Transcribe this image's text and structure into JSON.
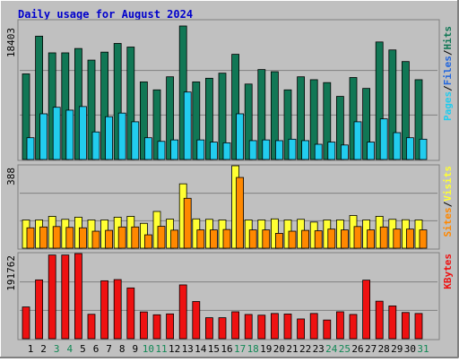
{
  "title": "Daily usage for August 2024",
  "colors": {
    "hits": "#117755",
    "files": "#22ccee",
    "sites": "#ff8800",
    "visits": "#ffff33",
    "kbytes": "#ee1111",
    "weekend_label": "#118855",
    "weekday_label": "#000000",
    "title_text": "#0000cc",
    "background": "#c0c0c0"
  },
  "chart_data": [
    {
      "type": "bar",
      "panel": "top",
      "side_label_parts": [
        "Pages",
        "Files",
        "Hits"
      ],
      "max_label": "18403",
      "ylim": [
        0,
        18403
      ],
      "categories": [
        "1",
        "2",
        "3",
        "4",
        "5",
        "6",
        "7",
        "8",
        "9",
        "10",
        "11",
        "12",
        "13",
        "14",
        "15",
        "16",
        "17",
        "18",
        "19",
        "20",
        "21",
        "22",
        "23",
        "24",
        "25",
        "26",
        "27",
        "28",
        "29",
        "30",
        "31"
      ],
      "weekend_days": [
        "3",
        "4",
        "10",
        "11",
        "17",
        "18",
        "24",
        "25",
        "31"
      ],
      "series": [
        {
          "name": "Hits",
          "values": [
            11800,
            17000,
            14700,
            14700,
            15300,
            13700,
            14800,
            16000,
            15500,
            10700,
            9600,
            11400,
            18403,
            10700,
            11200,
            11900,
            14500,
            10400,
            12400,
            12100,
            9600,
            11400,
            11000,
            10600,
            8700,
            11300,
            9800,
            16200,
            15100,
            13500,
            11000
          ]
        },
        {
          "name": "Files",
          "values": [
            3000,
            6300,
            7200,
            6800,
            7300,
            3800,
            5900,
            6400,
            5200,
            3000,
            2500,
            2700,
            9300,
            2700,
            2400,
            2300,
            6300,
            2600,
            2700,
            2600,
            2800,
            2600,
            2100,
            2400,
            2000,
            5200,
            2400,
            5600,
            3700,
            3000,
            2800
          ]
        },
        {
          "name": "Pages",
          "values": [
            0,
            0,
            0,
            0,
            0,
            0,
            0,
            0,
            0,
            0,
            0,
            0,
            0,
            0,
            0,
            0,
            0,
            0,
            0,
            0,
            0,
            0,
            0,
            0,
            0,
            0,
            0,
            0,
            0,
            0,
            0
          ]
        }
      ]
    },
    {
      "type": "bar",
      "panel": "middle",
      "side_label_parts": [
        "Sites",
        "Visits"
      ],
      "max_label": "388",
      "ylim": [
        0,
        388
      ],
      "categories": [
        "1",
        "2",
        "3",
        "4",
        "5",
        "6",
        "7",
        "8",
        "9",
        "10",
        "11",
        "12",
        "13",
        "14",
        "15",
        "16",
        "17",
        "18",
        "19",
        "20",
        "21",
        "22",
        "23",
        "24",
        "25",
        "26",
        "27",
        "28",
        "29",
        "30",
        "31"
      ],
      "series": [
        {
          "name": "Visits",
          "values": [
            133,
            133,
            150,
            136,
            146,
            133,
            133,
            146,
            150,
            117,
            173,
            137,
            303,
            138,
            136,
            133,
            388,
            133,
            133,
            138,
            133,
            136,
            123,
            133,
            133,
            154,
            133,
            150,
            136,
            134,
            133
          ]
        },
        {
          "name": "Sites",
          "values": [
            96,
            100,
            102,
            98,
            96,
            80,
            84,
            100,
            100,
            63,
            103,
            85,
            235,
            86,
            86,
            88,
            333,
            86,
            86,
            70,
            80,
            84,
            82,
            90,
            86,
            102,
            86,
            100,
            90,
            90,
            86
          ]
        }
      ]
    },
    {
      "type": "bar",
      "panel": "bottom",
      "side_label_parts": [
        "KBytes"
      ],
      "max_label": "191762",
      "ylim": [
        0,
        191762
      ],
      "categories": [
        "1",
        "2",
        "3",
        "4",
        "5",
        "6",
        "7",
        "8",
        "9",
        "10",
        "11",
        "12",
        "13",
        "14",
        "15",
        "16",
        "17",
        "18",
        "19",
        "20",
        "21",
        "22",
        "23",
        "24",
        "25",
        "26",
        "27",
        "28",
        "29",
        "30",
        "31"
      ],
      "series": [
        {
          "name": "KBytes",
          "values": [
            71500,
            132500,
            188500,
            188500,
            191762,
            55000,
            130500,
            133200,
            114400,
            60300,
            53900,
            55900,
            121200,
            83800,
            47300,
            47300,
            60600,
            54600,
            53000,
            56800,
            55600,
            44500,
            56800,
            42100,
            60600,
            54600,
            131900,
            84500,
            73800,
            59000,
            56800
          ]
        }
      ]
    }
  ]
}
